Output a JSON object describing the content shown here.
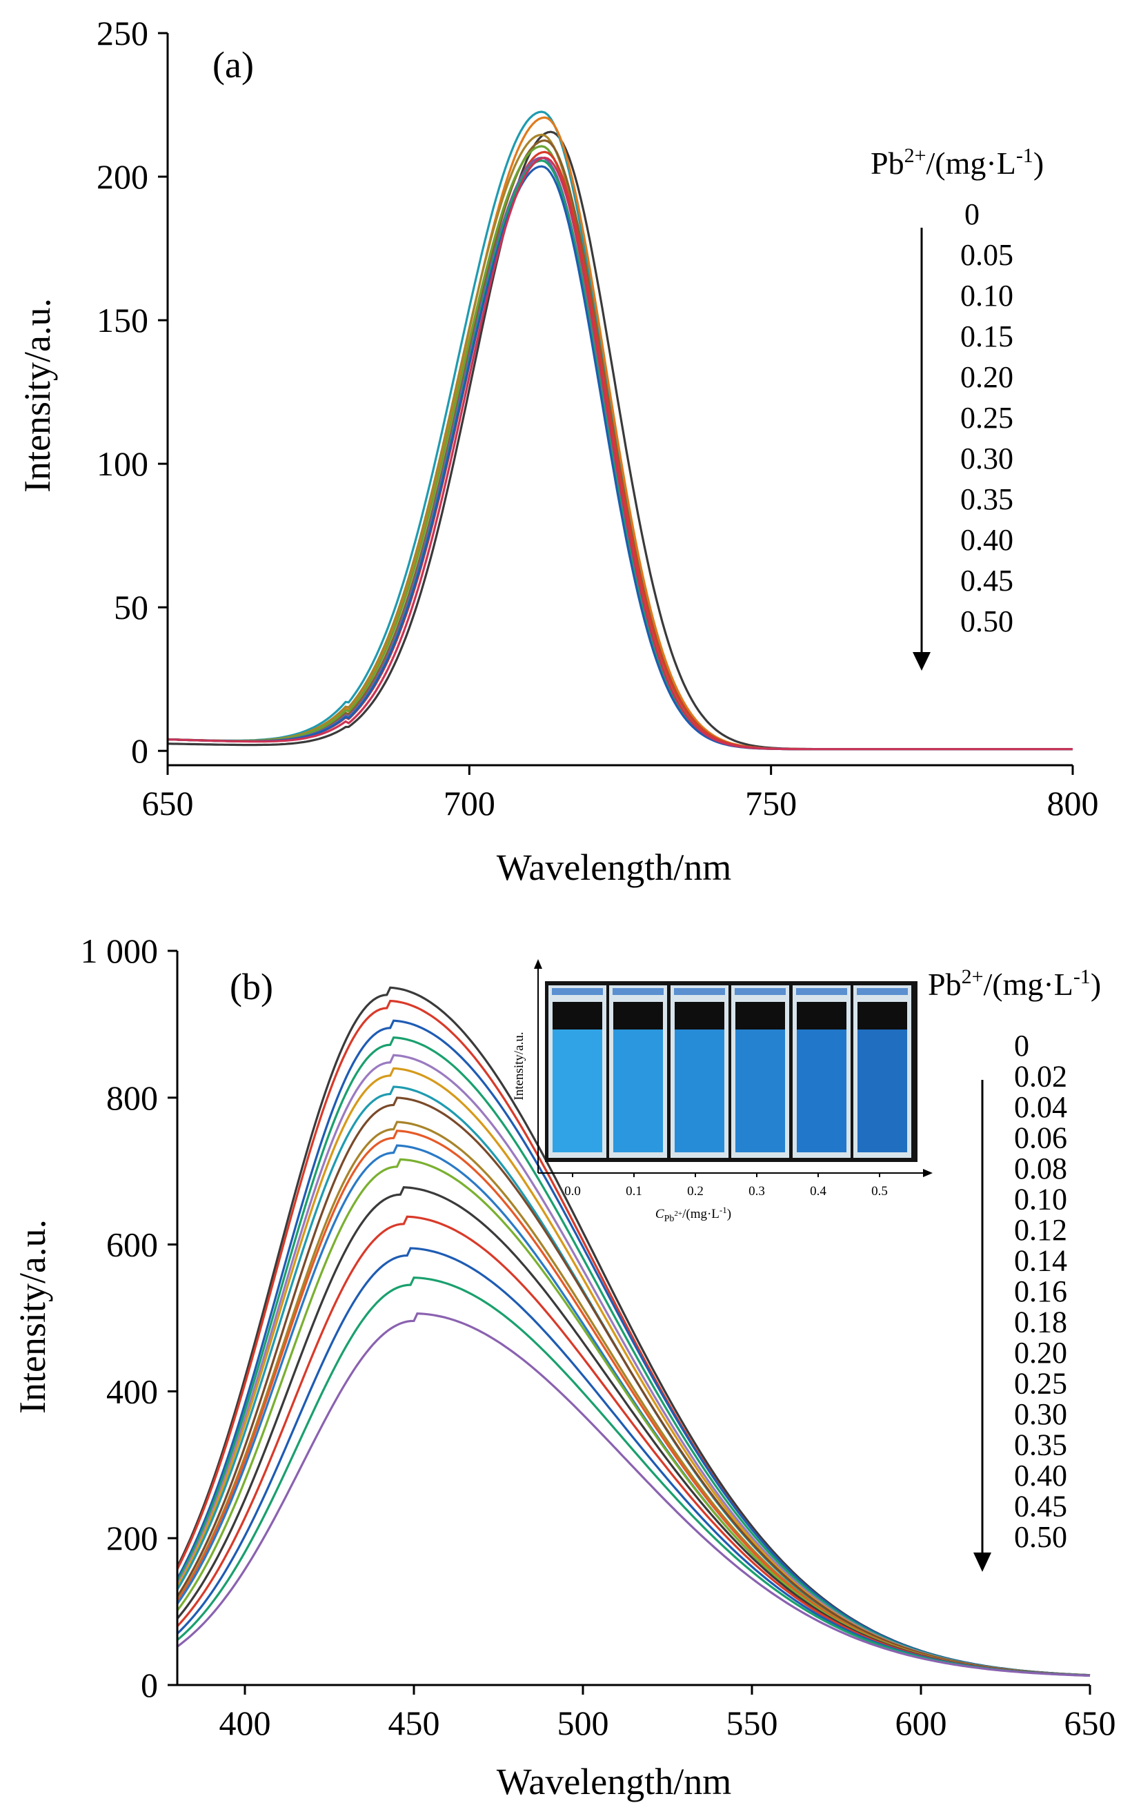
{
  "figure": {
    "panels": [
      "(a)",
      "(b)"
    ]
  },
  "chart_data": [
    {
      "type": "line",
      "panel_label": "(a)",
      "xlabel": "Wavelength/nm",
      "ylabel": "Intensity/a.u.",
      "xlim": [
        650,
        800
      ],
      "ylim": [
        -5,
        250
      ],
      "xticks": [
        650,
        700,
        750,
        800
      ],
      "yticks": [
        0,
        50,
        100,
        150,
        200,
        250
      ],
      "xtick_labels": [
        "650",
        "700",
        "750",
        "800"
      ],
      "ytick_labels": [
        "0",
        "50",
        "100",
        "150",
        "200",
        "250"
      ],
      "grid": false,
      "legend": {
        "title_base": "Pb",
        "title_sup": "2+",
        "title_mid": "/(mg·L",
        "title_sup2": "-1",
        "title_end": ")",
        "entries": [
          "0",
          "0.05",
          "0.10",
          "0.15",
          "0.20",
          "0.25",
          "0.30",
          "0.35",
          "0.40",
          "0.45",
          "0.50"
        ],
        "placement": "right",
        "arrow": "down"
      },
      "series": [
        {
          "color": "#3a3a3a",
          "peak_x": 713.5,
          "peak_y": 215,
          "sigma_left": 13.0,
          "sigma_right": 10.4,
          "baseline": 2.5
        },
        {
          "color": "#1f9bb0",
          "peak_x": 712,
          "peak_y": 222,
          "sigma_left": 14.0,
          "sigma_right": 10.2,
          "baseline": 4
        },
        {
          "color": "#e07a1c",
          "peak_x": 712.5,
          "peak_y": 220,
          "sigma_left": 13.8,
          "sigma_right": 10.1,
          "baseline": 4
        },
        {
          "color": "#a8842a",
          "peak_x": 712,
          "peak_y": 214,
          "sigma_left": 13.8,
          "sigma_right": 10.1,
          "baseline": 4
        },
        {
          "color": "#8a5f28",
          "peak_x": 712.5,
          "peak_y": 212,
          "sigma_left": 13.6,
          "sigma_right": 10.0,
          "baseline": 4
        },
        {
          "color": "#6aa233",
          "peak_x": 712,
          "peak_y": 210,
          "sigma_left": 13.6,
          "sigma_right": 10.0,
          "baseline": 4
        },
        {
          "color": "#d93a2a",
          "peak_x": 712.5,
          "peak_y": 208,
          "sigma_left": 13.3,
          "sigma_right": 10.0,
          "baseline": 4
        },
        {
          "color": "#7b5aa6",
          "peak_x": 712,
          "peak_y": 206,
          "sigma_left": 13.3,
          "sigma_right": 9.9,
          "baseline": 4
        },
        {
          "color": "#1aa06e",
          "peak_x": 712,
          "peak_y": 205,
          "sigma_left": 13.2,
          "sigma_right": 9.9,
          "baseline": 4
        },
        {
          "color": "#1e5cb3",
          "peak_x": 712,
          "peak_y": 203,
          "sigma_left": 13.2,
          "sigma_right": 9.8,
          "baseline": 4
        },
        {
          "color": "#cc3355",
          "peak_x": 712.5,
          "peak_y": 206,
          "sigma_left": 13.0,
          "sigma_right": 9.8,
          "baseline": 4
        }
      ]
    },
    {
      "type": "line",
      "panel_label": "(b)",
      "xlabel": "Wavelength/nm",
      "ylabel": "Intensity/a.u.",
      "xlim": [
        380,
        650
      ],
      "ylim": [
        0,
        1000
      ],
      "xticks": [
        400,
        450,
        500,
        550,
        600,
        650
      ],
      "yticks": [
        0,
        200,
        400,
        600,
        800,
        1000
      ],
      "xtick_labels": [
        "400",
        "450",
        "500",
        "550",
        "600",
        "650"
      ],
      "ytick_labels": [
        "0",
        "200",
        "400",
        "600",
        "800",
        "1 000"
      ],
      "grid": false,
      "legend": {
        "title_base": "Pb",
        "title_sup": "2+",
        "title_mid": "/(mg·L",
        "title_sup2": "-1",
        "title_end": ")",
        "entries": [
          "0",
          "0.02",
          "0.04",
          "0.06",
          "0.08",
          "0.10",
          "0.12",
          "0.14",
          "0.16",
          "0.18",
          "0.20",
          "0.25",
          "0.30",
          "0.35",
          "0.40",
          "0.45",
          "0.50"
        ],
        "placement": "right",
        "arrow": "down"
      },
      "series": [
        {
          "color": "#3a3a3a",
          "peak_x": 442,
          "peak_y": 940
        },
        {
          "color": "#d93a2a",
          "peak_x": 442,
          "peak_y": 922
        },
        {
          "color": "#1e5cb3",
          "peak_x": 443,
          "peak_y": 895
        },
        {
          "color": "#1aa06e",
          "peak_x": 443,
          "peak_y": 872
        },
        {
          "color": "#9a7ac0",
          "peak_x": 443,
          "peak_y": 848
        },
        {
          "color": "#d69a1a",
          "peak_x": 443,
          "peak_y": 830
        },
        {
          "color": "#1f9bb0",
          "peak_x": 443,
          "peak_y": 805
        },
        {
          "color": "#7a4a2a",
          "peak_x": 444,
          "peak_y": 790
        },
        {
          "color": "#a8842a",
          "peak_x": 444,
          "peak_y": 757
        },
        {
          "color": "#e65a28",
          "peak_x": 444,
          "peak_y": 745
        },
        {
          "color": "#2a7ac6",
          "peak_x": 444,
          "peak_y": 725
        },
        {
          "color": "#7ab030",
          "peak_x": 445,
          "peak_y": 706
        },
        {
          "color": "#3a3a3a",
          "peak_x": 446,
          "peak_y": 668
        },
        {
          "color": "#d93a2a",
          "peak_x": 447,
          "peak_y": 628
        },
        {
          "color": "#1e5cb3",
          "peak_x": 448,
          "peak_y": 585
        },
        {
          "color": "#1aa06e",
          "peak_x": 449,
          "peak_y": 545
        },
        {
          "color": "#8a62b0",
          "peak_x": 450,
          "peak_y": 496
        }
      ],
      "inset": {
        "ylabel": "Intensity/a.u.",
        "xlabel_italic": "C",
        "xlabel_sub": "Pb",
        "xlabel_subsup": "2+",
        "xlabel_rest": "/(mg·L",
        "xlabel_sup": "-1",
        "xlabel_end": ")",
        "xtick_labels": [
          "0.0",
          "0.1",
          "0.2",
          "0.3",
          "0.4",
          "0.5"
        ]
      }
    }
  ]
}
